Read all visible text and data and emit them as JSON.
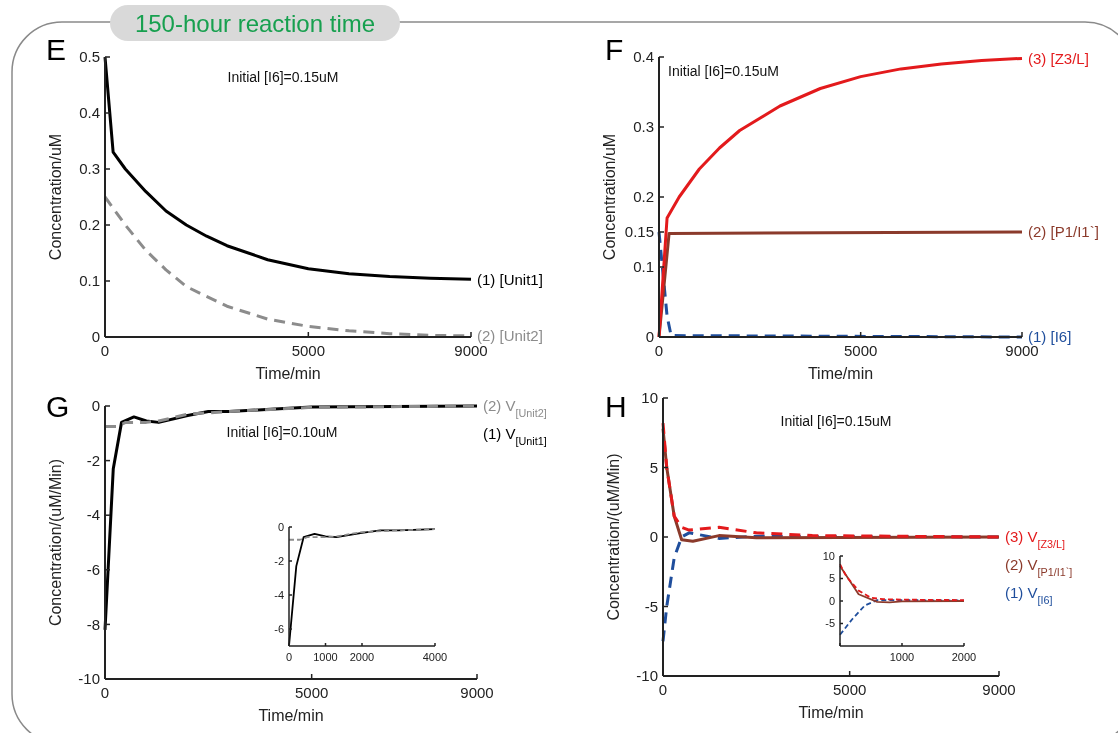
{
  "chart_data": [
    {
      "type": "other",
      "title": "150-hour reaction time"
    },
    {
      "type": "line",
      "title": "E",
      "xlabel": "Time/min",
      "ylabel": "Concentration/uM",
      "annotations": [
        "Initial [I6]=0.15uM"
      ],
      "xlim": [
        0,
        9000
      ],
      "xticks": [
        0,
        5000,
        9000
      ],
      "ylim": [
        0,
        0.5
      ],
      "yticks": [
        0,
        0.1,
        0.2,
        0.3,
        0.4,
        0.5
      ],
      "series": [
        {
          "name": "(1) [Unit1]",
          "color": "#000000",
          "line_style": "solid",
          "x": [
            0,
            200,
            500,
            1000,
            1500,
            2000,
            2500,
            3000,
            4000,
            5000,
            6000,
            7000,
            8000,
            9000
          ],
          "values": [
            0.5,
            0.33,
            0.3,
            0.26,
            0.225,
            0.2,
            0.18,
            0.163,
            0.138,
            0.122,
            0.113,
            0.108,
            0.105,
            0.103
          ]
        },
        {
          "name": "(2) [Unit2]",
          "color": "#8c8c8c",
          "line_style": "dashed",
          "x": [
            0,
            500,
            1000,
            1500,
            2000,
            3000,
            4000,
            5000,
            6000,
            7000,
            8000,
            9000
          ],
          "values": [
            0.25,
            0.2,
            0.155,
            0.12,
            0.09,
            0.055,
            0.032,
            0.019,
            0.011,
            0.006,
            0.003,
            0.002
          ]
        }
      ]
    },
    {
      "type": "line",
      "title": "F",
      "xlabel": "Time/min",
      "ylabel": "Concentration/uM",
      "annotations": [
        "Initial [I6]=0.15uM"
      ],
      "xlim": [
        0,
        9000
      ],
      "xticks": [
        0,
        5000,
        9000
      ],
      "ylim": [
        0,
        0.4
      ],
      "yticks": [
        0,
        0.1,
        0.15,
        0.2,
        0.3,
        0.4
      ],
      "series": [
        {
          "name": "(1) [I6]",
          "color": "#1f4e9c",
          "line_style": "dashed",
          "x": [
            0,
            200,
            300,
            9000
          ],
          "values": [
            0.15,
            0.03,
            0.002,
            0
          ]
        },
        {
          "name": "(2) [P1/I1`]",
          "color": "#8b3a2b",
          "line_style": "solid",
          "x": [
            0,
            250,
            9000
          ],
          "values": [
            0,
            0.148,
            0.15
          ]
        },
        {
          "name": "(3) [Z3/L]",
          "color": "#e31a1c",
          "line_style": "solid",
          "x": [
            0,
            200,
            500,
            1000,
            1500,
            2000,
            3000,
            4000,
            5000,
            6000,
            7000,
            8000,
            9000
          ],
          "values": [
            0,
            0.17,
            0.2,
            0.24,
            0.27,
            0.295,
            0.33,
            0.355,
            0.372,
            0.383,
            0.39,
            0.395,
            0.398
          ]
        }
      ]
    },
    {
      "type": "line",
      "title": "G",
      "xlabel": "Time/min",
      "ylabel": "Concentration/(uM/Min)",
      "annotations": [
        "Initial [I6]=0.10uM"
      ],
      "xlim": [
        0,
        9000
      ],
      "xticks": [
        0,
        5000,
        9000
      ],
      "ylim": [
        -10,
        0
      ],
      "yticks": [
        -10,
        -8,
        -6,
        -4,
        -2,
        0
      ],
      "series": [
        {
          "name": "(1) V$_{[Unit1]}$",
          "color": "#000000",
          "line_style": "solid",
          "x": [
            0,
            200,
            400,
            700,
            1000,
            1300,
            2000,
            2500,
            3000,
            4000,
            5000,
            6000,
            9000
          ],
          "values": [
            -8.2,
            -2.3,
            -0.6,
            -0.4,
            -0.55,
            -0.6,
            -0.35,
            -0.2,
            -0.2,
            -0.12,
            -0.04,
            -0.03,
            0
          ]
        },
        {
          "name": "(2) V$_{[Unit2]}$",
          "color": "#8c8c8c",
          "line_style": "dashed",
          "x": [
            0,
            300,
            500,
            1000,
            1300,
            2000,
            3000,
            5000,
            9000
          ],
          "values": [
            -0.75,
            -0.75,
            -0.6,
            -0.6,
            -0.55,
            -0.3,
            -0.2,
            -0.05,
            0
          ]
        }
      ]
    },
    {
      "type": "line",
      "xlim": [
        0,
        4000
      ],
      "xticks": [
        0,
        1000,
        2000,
        4000
      ],
      "ylim": [
        -7,
        0
      ],
      "yticks": [
        -6,
        -4,
        -2,
        0
      ],
      "series": [
        {
          "color": "#000000",
          "line_style": "solid",
          "x": [
            0,
            200,
            400,
            700,
            1000,
            1300,
            2000,
            2500,
            3000,
            4000
          ],
          "values": [
            -7,
            -2.3,
            -0.6,
            -0.4,
            -0.55,
            -0.6,
            -0.35,
            -0.2,
            -0.2,
            -0.12
          ]
        },
        {
          "color": "#8c8c8c",
          "line_style": "dashed",
          "x": [
            0,
            300,
            500,
            1000,
            1300,
            2000,
            3000,
            4000
          ],
          "values": [
            -0.75,
            -0.75,
            -0.6,
            -0.6,
            -0.55,
            -0.3,
            -0.2,
            -0.12
          ]
        }
      ]
    },
    {
      "type": "line",
      "title": "H",
      "xlabel": "Time/min",
      "ylabel": "Concentration/(uM/Min)",
      "annotations": [
        "Initial [I6]=0.15uM"
      ],
      "xlim": [
        0,
        9000
      ],
      "xticks": [
        0,
        5000,
        9000
      ],
      "ylim": [
        -10,
        10
      ],
      "yticks": [
        -10,
        -5,
        0,
        5,
        10
      ],
      "series": [
        {
          "name": "(1) V$_{[I6]}$",
          "color": "#1f4e9c",
          "line_style": "dashed",
          "x": [
            0,
            100,
            300,
            500,
            700,
            1500,
            2500,
            9000
          ],
          "values": [
            -7.5,
            -5,
            -1.5,
            0,
            0.3,
            -0.1,
            0.05,
            0
          ]
        },
        {
          "name": "(2) V$_{[P1/I1`]}$",
          "color": "#8b3a2b",
          "line_style": "solid",
          "x": [
            0,
            100,
            300,
            500,
            800,
            1500,
            2500,
            9000
          ],
          "values": [
            7.8,
            5,
            1.5,
            -0.2,
            -0.3,
            0.1,
            -0.05,
            0
          ]
        },
        {
          "name": "(3) V$_{[Z3/L]}$",
          "color": "#e31a1c",
          "line_style": "dashed",
          "x": [
            0,
            100,
            300,
            500,
            700,
            1500,
            2500,
            4000,
            9000
          ],
          "values": [
            8.2,
            5,
            1.5,
            0.7,
            0.5,
            0.7,
            0.3,
            0.1,
            0
          ]
        }
      ]
    },
    {
      "type": "line",
      "xlim": [
        0,
        2000
      ],
      "xticks": [
        {
          "value": 0,
          "label": null
        },
        1000,
        2000
      ],
      "ylim": [
        -10,
        10
      ],
      "yticks": [
        -5,
        0,
        5,
        10
      ],
      "series": [
        {
          "color": "#1f4e9c",
          "line_style": "dashed",
          "x": [
            0,
            200,
            400,
            600,
            1000,
            2000
          ],
          "values": [
            -7.5,
            -4,
            -1,
            0.2,
            0.2,
            0.1
          ]
        },
        {
          "color": "#8b3a2b",
          "line_style": "solid",
          "x": [
            0,
            300,
            600,
            800,
            1000,
            2000
          ],
          "values": [
            7.8,
            1.5,
            -0.2,
            -0.3,
            -0.1,
            0
          ]
        },
        {
          "color": "#e31a1c",
          "line_style": "dashed",
          "x": [
            0,
            100,
            300,
            500,
            700,
            1000,
            2000
          ],
          "values": [
            8.2,
            5.5,
            2.3,
            0.7,
            0.4,
            0.3,
            0.2
          ]
        }
      ]
    }
  ]
}
